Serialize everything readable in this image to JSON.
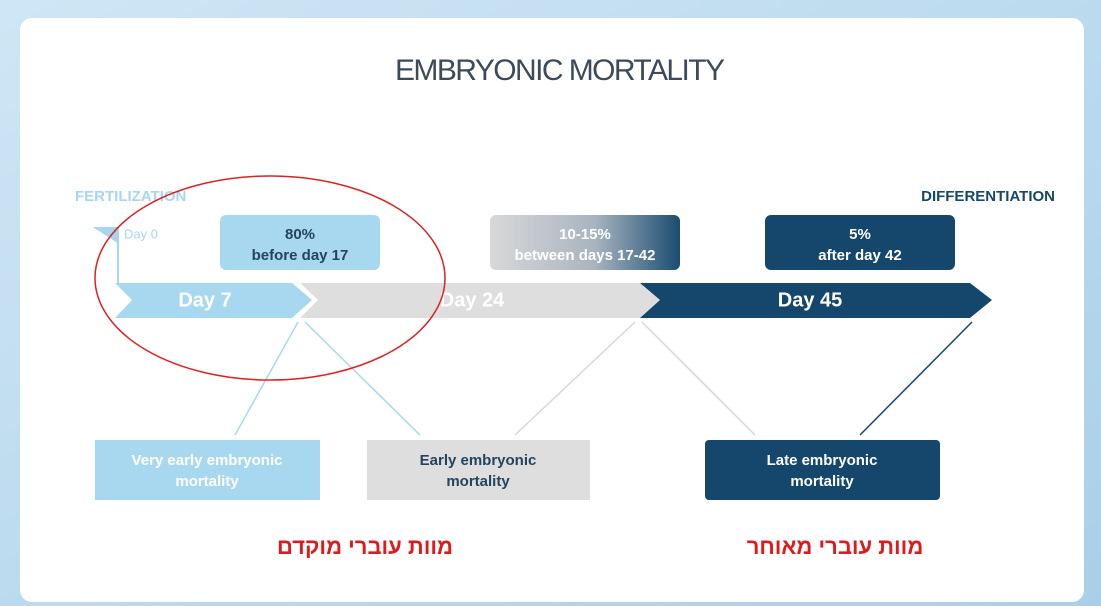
{
  "title": "EMBRYONIC MORTALITY",
  "milestones": {
    "start": "FERTILIZATION",
    "end": "DIFFERENTIATION",
    "day0": "Day 0"
  },
  "stats": [
    {
      "percent": "80%",
      "period": "before day 17"
    },
    {
      "percent": "10-15%",
      "period": "between days 17-42"
    },
    {
      "percent": "5%",
      "period": "after day 42"
    }
  ],
  "timeline": [
    "Day 7",
    "Day 24",
    "Day 45"
  ],
  "phases": [
    {
      "lines": [
        "Very early embryonic",
        "mortality"
      ]
    },
    {
      "lines": [
        "Early embryonic",
        "mortality"
      ]
    },
    {
      "lines": [
        "Late embryonic",
        "mortality"
      ]
    }
  ],
  "annotations": [
    "מוות עוברי מוקדם",
    "מוות עוברי מאוחר"
  ]
}
